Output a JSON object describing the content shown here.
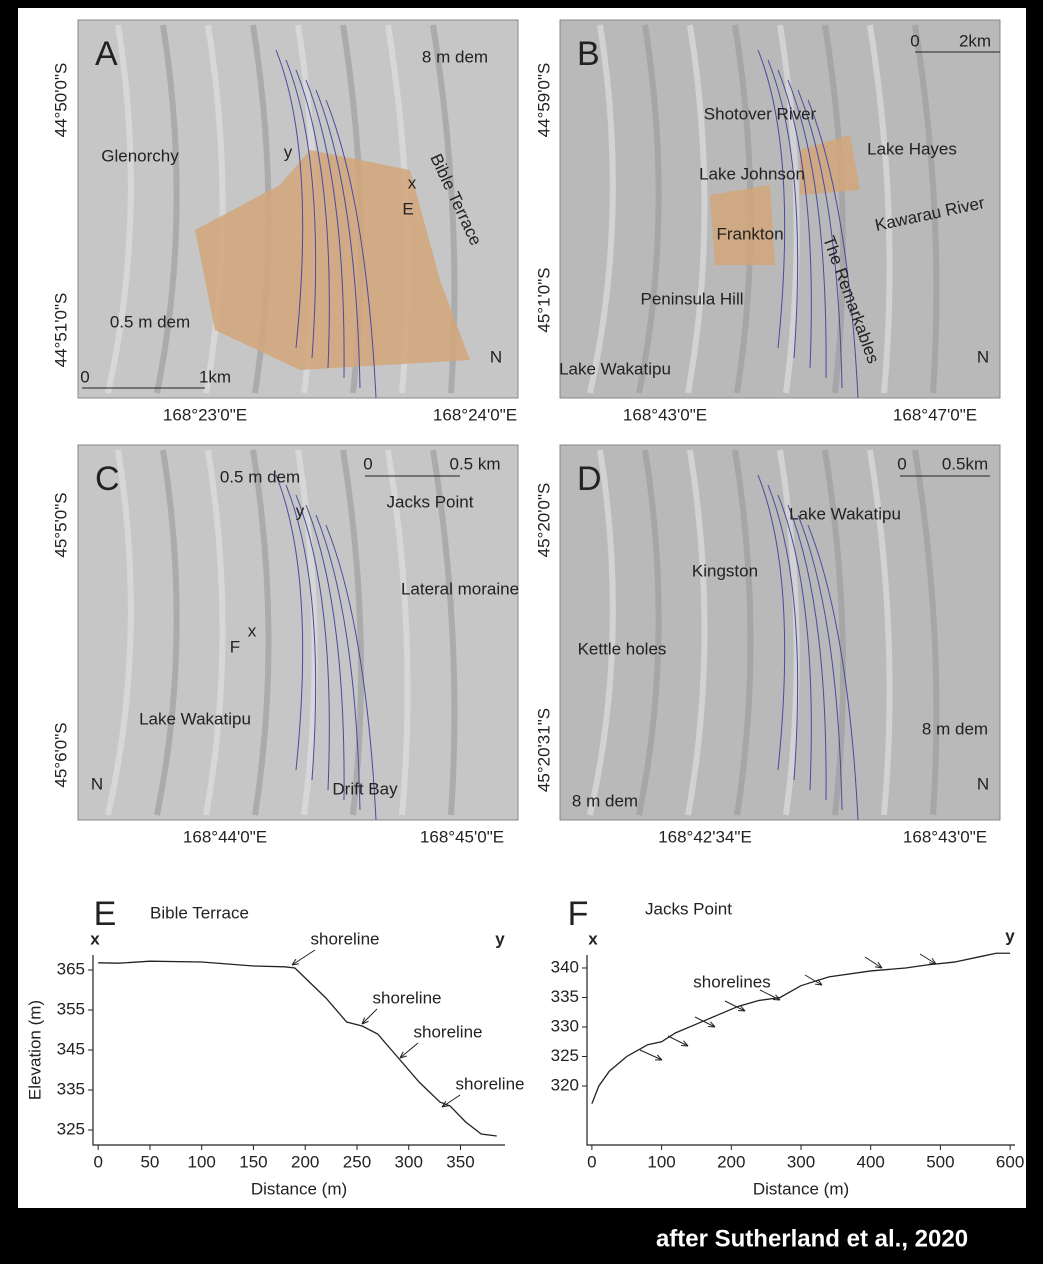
{
  "maps": [
    {
      "letter": "A",
      "labels": [
        "8 m dem",
        "Glenorchy",
        "Bible Terrace",
        "0.5 m dem",
        "y",
        "x",
        "E",
        "N"
      ],
      "scale": [
        "0",
        "1km"
      ],
      "lat": [
        "44°50'0\"S",
        "44°51'0\"S"
      ],
      "lon": [
        "168°23'0\"E",
        "168°24'0\"E"
      ]
    },
    {
      "letter": "B",
      "labels": [
        "Shotover River",
        "Lake Hayes",
        "Lake Johnson",
        "Frankton",
        "Kawarau River",
        "The Remarkables",
        "Peninsula Hill",
        "Lake Wakatipu",
        "N"
      ],
      "scale": [
        "0",
        "2km"
      ],
      "lat": [
        "44°59'0\"S",
        "45°1'0\"S"
      ],
      "lon": [
        "168°43'0\"E",
        "168°47'0\"E"
      ]
    },
    {
      "letter": "C",
      "labels": [
        "0.5 m dem",
        "Jacks Point",
        "y",
        "Lateral moraine",
        "x",
        "F",
        "Lake Wakatipu",
        "Drift Bay",
        "N"
      ],
      "scale": [
        "0",
        "0.5 km"
      ],
      "lat": [
        "45°5'0\"S",
        "45°6'0\"S"
      ],
      "lon": [
        "168°44'0\"E",
        "168°45'0\"E"
      ]
    },
    {
      "letter": "D",
      "labels": [
        "Lake Wakatipu",
        "Kingston",
        "Kettle holes",
        "8 m dem",
        "8 m dem",
        "N"
      ],
      "scale": [
        "0",
        "0.5km"
      ],
      "lat": [
        "45°20'0\"S",
        "45°20'31\"S"
      ],
      "lon": [
        "168°42'34\"E",
        "168°43'0\"E"
      ]
    }
  ],
  "chart_data": [
    {
      "type": "line",
      "letter": "E",
      "title": "Bible Terrace",
      "x_label": "Distance (m)",
      "y_label": "Elevation (m)",
      "ends": [
        "x",
        "y"
      ],
      "annotations": [
        "shoreline",
        "shoreline",
        "shoreline",
        "shoreline"
      ],
      "color": "#222222",
      "x": [
        0,
        20,
        50,
        100,
        150,
        180,
        190,
        200,
        220,
        240,
        255,
        270,
        290,
        310,
        330,
        340,
        355,
        370,
        385
      ],
      "values": [
        366.8,
        366.7,
        367.2,
        367,
        366,
        365.8,
        365.5,
        363,
        358,
        352,
        351,
        349,
        343,
        337,
        332,
        331,
        327,
        324,
        323.5
      ],
      "xlim": [
        -5,
        393
      ],
      "ylim": [
        321.25,
        368.75
      ],
      "xticks": [
        0,
        50,
        100,
        150,
        200,
        250,
        300,
        350
      ],
      "yticks": [
        325,
        335,
        345,
        355,
        365
      ]
    },
    {
      "type": "line",
      "letter": "F",
      "title": "Jacks Point",
      "x_label": "Distance (m)",
      "ends": [
        "x",
        "y"
      ],
      "annotations": [
        "shorelines"
      ],
      "color": "#222222",
      "x": [
        0,
        10,
        25,
        50,
        80,
        100,
        120,
        150,
        180,
        210,
        240,
        270,
        300,
        340,
        400,
        450,
        480,
        520,
        560,
        580,
        600
      ],
      "values": [
        317,
        320,
        322.5,
        325,
        327,
        327.5,
        329,
        330.5,
        332,
        333.5,
        334.5,
        335,
        337,
        338.5,
        339.5,
        340,
        340.5,
        341,
        342,
        342.5,
        342.5
      ],
      "xlim": [
        -7,
        607
      ],
      "ylim": [
        310,
        342.2
      ],
      "xticks": [
        0,
        100,
        200,
        300,
        400,
        500,
        600
      ],
      "yticks": [
        320,
        325,
        330,
        335,
        340
      ]
    }
  ],
  "credit": "after Sutherland et al., 2020"
}
